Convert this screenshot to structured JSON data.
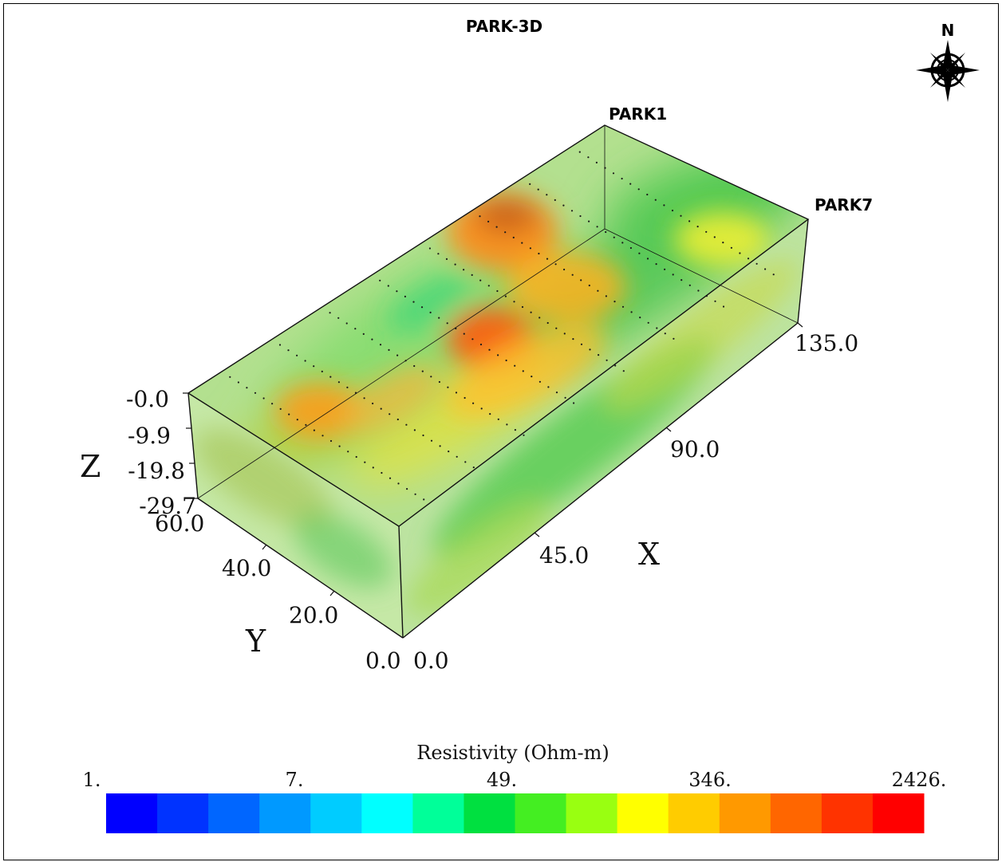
{
  "title": "PARK-3D",
  "compass": {
    "north_label": "N",
    "icon": "compass-rose-icon"
  },
  "profiles": {
    "start": "PARK1",
    "end": "PARK7"
  },
  "axes": {
    "x": {
      "label": "X",
      "ticks": [
        "0.0",
        "45.0",
        "90.0",
        "135.0"
      ]
    },
    "y": {
      "label": "Y",
      "ticks": [
        "0.0",
        "20.0",
        "40.0",
        "60.0"
      ]
    },
    "z": {
      "label": "Z",
      "ticks": [
        "-0.0",
        "-9.9",
        "-19.8",
        "-29.7"
      ]
    }
  },
  "colorbar": {
    "title": "Resistivity (Ohm-m)",
    "labels": [
      "1.",
      "7.",
      "49.",
      "346.",
      "2426."
    ],
    "colors": [
      "#0000ff",
      "#0033ff",
      "#0066ff",
      "#0099ff",
      "#00ccff",
      "#00ffff",
      "#00ff99",
      "#00e040",
      "#44ee22",
      "#99ff11",
      "#ffff00",
      "#ffcc00",
      "#ff9900",
      "#ff6600",
      "#ff3300",
      "#ff0000"
    ]
  }
}
